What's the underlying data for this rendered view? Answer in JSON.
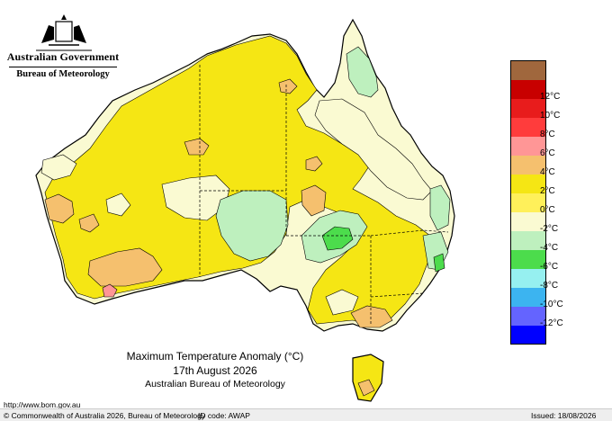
{
  "header": {
    "government": "Australian Government",
    "bureau": "Bureau of Meteorology"
  },
  "title": {
    "line1": "Maximum Temperature Anomaly (°C)",
    "line2": "17th August 2026",
    "line3": "Australian Bureau of Meteorology"
  },
  "legend": {
    "items": [
      {
        "label": "",
        "color": "#a0673d"
      },
      {
        "label": "12°C",
        "color": "#c80000"
      },
      {
        "label": "10°C",
        "color": "#e81c1c"
      },
      {
        "label": "8°C",
        "color": "#ff3c3c"
      },
      {
        "label": "6°C",
        "color": "#ff9696"
      },
      {
        "label": "4°C",
        "color": "#f5c06e"
      },
      {
        "label": "2°C",
        "color": "#f5e614"
      },
      {
        "label": "0°C",
        "color": "#fff05a"
      },
      {
        "label": "-2°C",
        "color": "#fafad2"
      },
      {
        "label": "-4°C",
        "color": "#bef0be"
      },
      {
        "label": "-6°C",
        "color": "#4cdc4c"
      },
      {
        "label": "-8°C",
        "color": "#96f0f0"
      },
      {
        "label": "-10°C",
        "color": "#3cb4f0"
      },
      {
        "label": "-12°C",
        "color": "#6464ff"
      },
      {
        "label": "",
        "color": "#0000ff"
      }
    ]
  },
  "footer": {
    "url": "http://www.bom.gov.au",
    "copyright": "© Commonwealth of Australia 2026, Bureau of Meteorology",
    "id_code": "ID code: AWAP",
    "issued": "Issued: 18/08/2026"
  },
  "colors": {
    "warm_2_4": "#f5e614",
    "warm_4_6": "#f5c06e",
    "warm_6_8": "#ff9696",
    "neutral_0_2": "#fafad2",
    "cool_0_-2": "#bef0be",
    "cool_-2_-4": "#4cdc4c",
    "outline": "#000000"
  }
}
